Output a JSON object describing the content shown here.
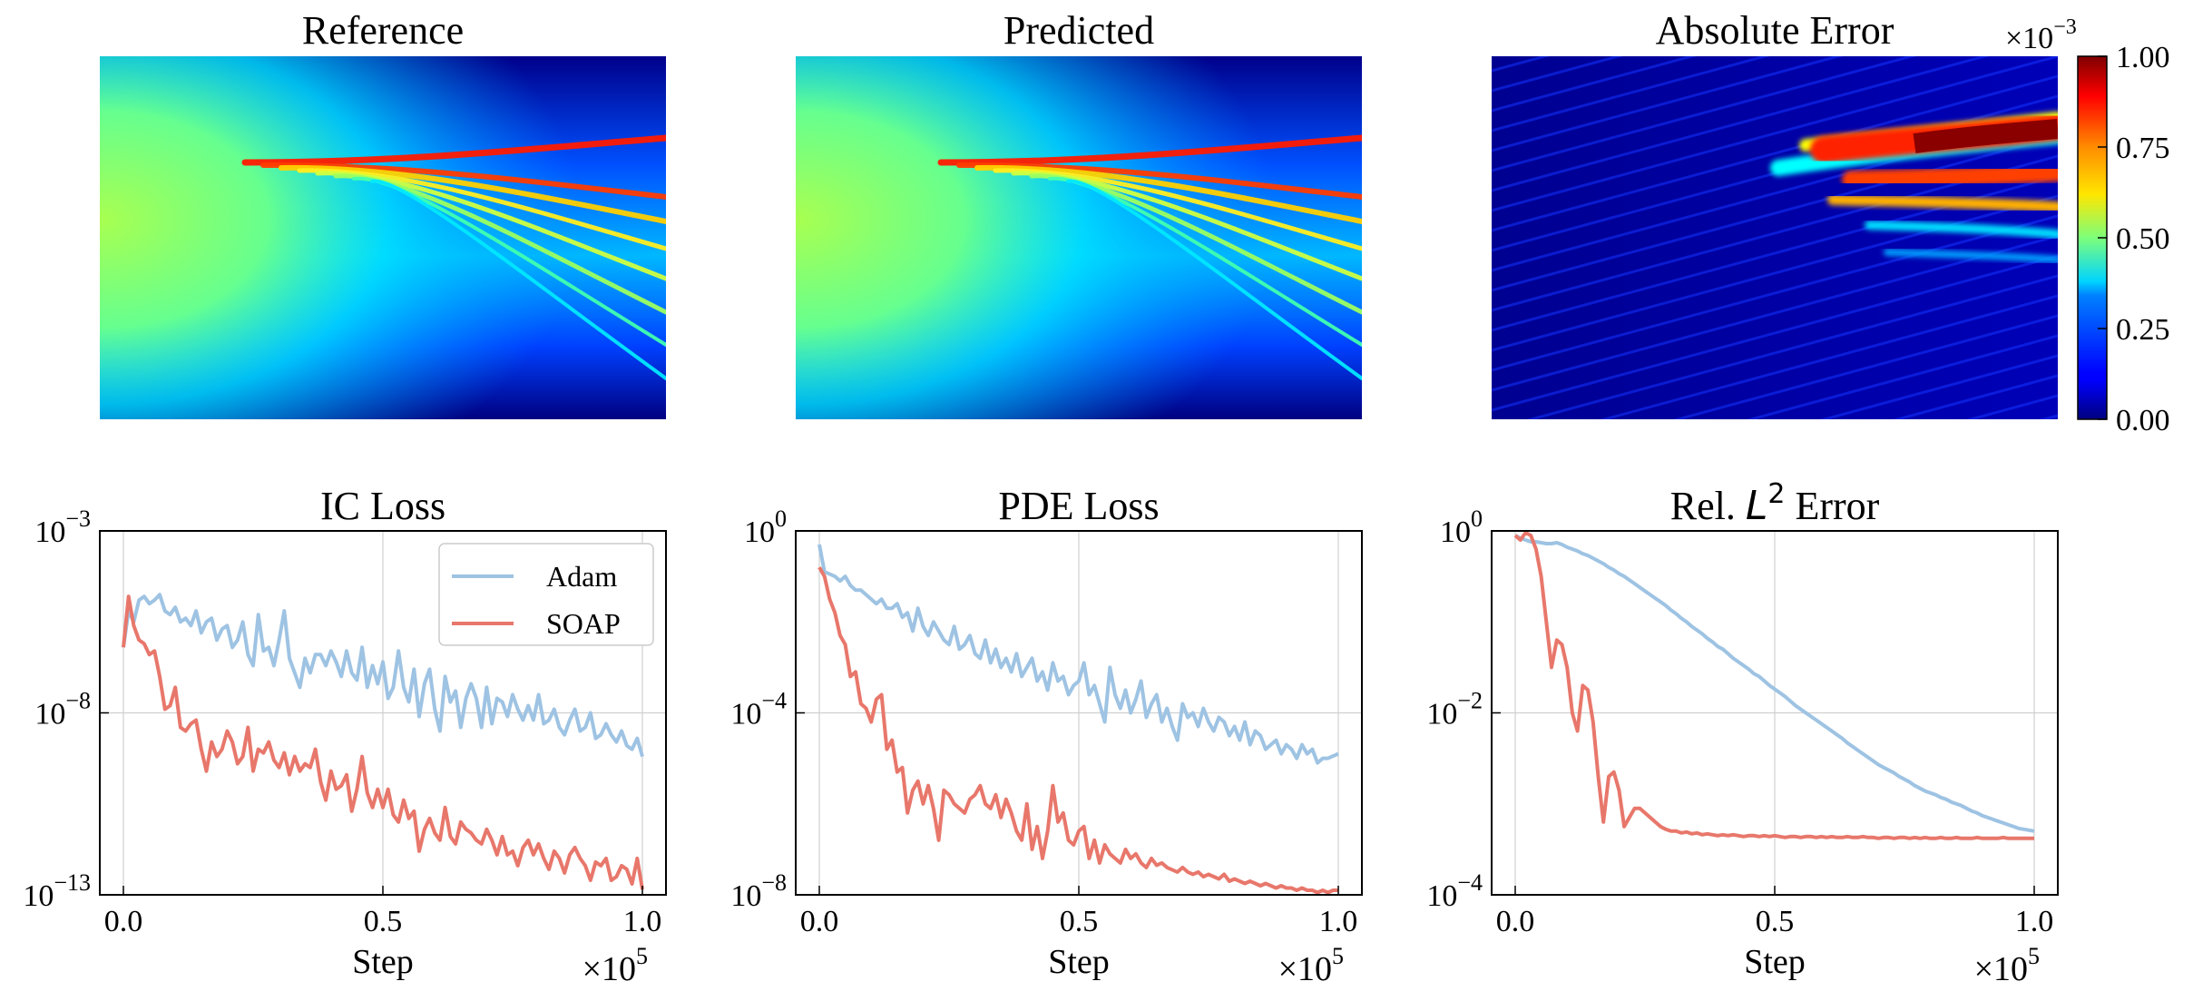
{
  "chart_data": [
    {
      "type": "heatmap",
      "title": "Reference",
      "field": "wave packet splitting into diverging beams (normalized amplitude)"
    },
    {
      "type": "heatmap",
      "title": "Predicted",
      "field": "wave packet splitting into diverging beams (normalized amplitude)"
    },
    {
      "type": "heatmap",
      "title": "Absolute Error",
      "colorbar": {
        "multiplier": "×10",
        "multiplier_exp": "−3",
        "range": [
          0,
          1
        ],
        "ticks": [
          "0.00",
          "0.25",
          "0.50",
          "0.75",
          "1.00"
        ]
      }
    },
    {
      "type": "line",
      "title": "IC Loss",
      "xlabel": "Step",
      "x_multiplier": "×10",
      "x_multiplier_exp": "5",
      "xlim": [
        0,
        1
      ],
      "yscale": "log",
      "ylim_exp": [
        -13,
        -3
      ],
      "xticks": [
        "0.0",
        "0.5",
        "1.0"
      ],
      "yticks": [
        {
          "exp": -3,
          "text": "−3"
        },
        {
          "exp": -8,
          "text": "−8"
        },
        {
          "exp": -13,
          "text": "−13"
        }
      ],
      "legend": {
        "position": "top-right",
        "entries": [
          "Adam",
          "SOAP"
        ]
      },
      "series": [
        {
          "name": "Adam",
          "color": "#9ec3e3",
          "log10_values": [
            -6.2,
            -5.2,
            -5.5,
            -4.9,
            -4.8,
            -5.0,
            -4.9,
            -4.75,
            -5.2,
            -5.3,
            -5.1,
            -5.5,
            -5.4,
            -5.6,
            -5.2,
            -5.8,
            -5.5,
            -5.4,
            -6.0,
            -5.7,
            -5.6,
            -6.2,
            -6.0,
            -5.5,
            -6.4,
            -6.7,
            -5.3,
            -6.3,
            -6.2,
            -6.7,
            -6.0,
            -5.2,
            -6.5,
            -6.9,
            -7.3,
            -6.5,
            -6.9,
            -6.4,
            -6.4,
            -6.7,
            -6.3,
            -6.6,
            -7.0,
            -6.3,
            -6.9,
            -7.1,
            -6.2,
            -7.3,
            -6.7,
            -7.2,
            -6.6,
            -7.6,
            -7.3,
            -6.3,
            -7.3,
            -7.7,
            -6.8,
            -8.1,
            -7.2,
            -6.8,
            -7.9,
            -8.5,
            -7.0,
            -7.7,
            -7.4,
            -8.4,
            -7.6,
            -7.2,
            -7.6,
            -8.4,
            -7.3,
            -8.3,
            -7.6,
            -7.7,
            -8.1,
            -7.5,
            -7.9,
            -8.2,
            -7.8,
            -8.2,
            -7.5,
            -8.3,
            -8.2,
            -7.9,
            -8.4,
            -8.6,
            -8.2,
            -7.9,
            -8.5,
            -8.4,
            -8.0,
            -8.7,
            -8.6,
            -8.3,
            -8.6,
            -8.8,
            -8.5,
            -8.9,
            -9.0,
            -8.7,
            -9.2
          ]
        },
        {
          "name": "SOAP",
          "color": "#e8776b",
          "log10_values": [
            -6.2,
            -4.8,
            -5.6,
            -6.0,
            -6.1,
            -6.4,
            -6.3,
            -7.0,
            -7.9,
            -7.8,
            -7.3,
            -8.4,
            -8.5,
            -8.3,
            -8.2,
            -9.0,
            -9.6,
            -8.8,
            -9.2,
            -9.0,
            -8.5,
            -8.8,
            -9.4,
            -9.2,
            -8.4,
            -9.6,
            -9.0,
            -9.1,
            -8.8,
            -9.3,
            -9.5,
            -9.1,
            -9.7,
            -9.2,
            -9.6,
            -9.4,
            -9.5,
            -9.0,
            -9.9,
            -10.4,
            -9.6,
            -10.1,
            -10.0,
            -9.7,
            -10.7,
            -10.1,
            -9.2,
            -10.2,
            -10.6,
            -10.1,
            -10.6,
            -10.1,
            -10.8,
            -11.0,
            -10.4,
            -10.9,
            -10.7,
            -11.8,
            -11.2,
            -10.9,
            -11.3,
            -11.5,
            -10.6,
            -11.4,
            -11.6,
            -11.0,
            -11.2,
            -11.3,
            -11.5,
            -11.6,
            -11.2,
            -11.5,
            -11.9,
            -11.4,
            -11.9,
            -11.8,
            -12.2,
            -11.7,
            -11.5,
            -11.9,
            -11.6,
            -12.0,
            -12.3,
            -11.8,
            -12.0,
            -12.4,
            -11.9,
            -11.7,
            -12.0,
            -12.2,
            -12.6,
            -12.1,
            -12.2,
            -12.0,
            -12.6,
            -12.5,
            -12.2,
            -12.3,
            -12.7,
            -12.0,
            -12.85
          ]
        }
      ]
    },
    {
      "type": "line",
      "title": "PDE Loss",
      "xlabel": "Step",
      "x_multiplier": "×10",
      "x_multiplier_exp": "5",
      "xlim": [
        0,
        1
      ],
      "yscale": "log",
      "ylim_exp": [
        -8,
        0
      ],
      "xticks": [
        "0.0",
        "0.5",
        "1.0"
      ],
      "yticks": [
        {
          "exp": 0,
          "text": "0"
        },
        {
          "exp": -4,
          "text": "−4"
        },
        {
          "exp": -8,
          "text": "−8"
        }
      ],
      "series": [
        {
          "name": "Adam",
          "color": "#9ec3e3",
          "log10_values": [
            -0.3,
            -0.9,
            -0.95,
            -1.0,
            -1.1,
            -1.0,
            -1.2,
            -1.3,
            -1.3,
            -1.4,
            -1.5,
            -1.6,
            -1.5,
            -1.7,
            -1.7,
            -1.6,
            -1.9,
            -1.8,
            -2.2,
            -1.7,
            -2.1,
            -2.3,
            -2.0,
            -2.2,
            -2.4,
            -2.5,
            -2.1,
            -2.6,
            -2.5,
            -2.3,
            -2.7,
            -2.8,
            -2.4,
            -2.9,
            -2.6,
            -3.0,
            -2.8,
            -3.1,
            -2.7,
            -3.2,
            -3.0,
            -2.8,
            -3.3,
            -3.1,
            -3.5,
            -2.9,
            -3.3,
            -3.2,
            -3.6,
            -3.4,
            -3.3,
            -2.9,
            -3.6,
            -3.4,
            -3.8,
            -4.2,
            -3.0,
            -3.6,
            -3.9,
            -3.5,
            -4.0,
            -3.7,
            -3.3,
            -4.1,
            -3.8,
            -3.6,
            -4.2,
            -3.9,
            -4.3,
            -4.6,
            -3.8,
            -4.1,
            -4.0,
            -4.3,
            -3.9,
            -4.2,
            -4.4,
            -4.1,
            -4.2,
            -4.5,
            -4.3,
            -4.6,
            -4.2,
            -4.7,
            -4.4,
            -4.5,
            -4.8,
            -4.7,
            -4.6,
            -4.9,
            -4.7,
            -4.8,
            -5.0,
            -4.7,
            -4.9,
            -4.8,
            -5.1,
            -5.0,
            -5.0,
            -4.95,
            -4.9
          ]
        },
        {
          "name": "SOAP",
          "color": "#e8776b",
          "log10_values": [
            -0.8,
            -1.0,
            -1.5,
            -1.8,
            -2.3,
            -2.5,
            -3.2,
            -3.1,
            -3.8,
            -3.9,
            -4.2,
            -3.7,
            -3.6,
            -4.8,
            -4.6,
            -5.3,
            -5.2,
            -6.2,
            -5.7,
            -5.5,
            -6.0,
            -5.6,
            -6.1,
            -6.8,
            -5.7,
            -5.8,
            -6.0,
            -6.1,
            -6.2,
            -5.9,
            -5.8,
            -5.6,
            -6.0,
            -6.1,
            -5.8,
            -6.3,
            -5.9,
            -6.2,
            -6.6,
            -6.8,
            -6.0,
            -7.0,
            -6.5,
            -7.2,
            -6.6,
            -5.6,
            -6.4,
            -6.2,
            -6.8,
            -6.9,
            -6.6,
            -6.5,
            -7.2,
            -6.8,
            -7.3,
            -6.9,
            -7.1,
            -7.2,
            -7.3,
            -7.0,
            -7.2,
            -7.1,
            -7.3,
            -7.4,
            -7.2,
            -7.35,
            -7.3,
            -7.4,
            -7.45,
            -7.5,
            -7.4,
            -7.5,
            -7.55,
            -7.5,
            -7.6,
            -7.55,
            -7.6,
            -7.65,
            -7.55,
            -7.7,
            -7.65,
            -7.7,
            -7.75,
            -7.7,
            -7.75,
            -7.8,
            -7.75,
            -7.8,
            -7.85,
            -7.8,
            -7.85,
            -7.85,
            -7.9,
            -7.85,
            -7.9,
            -7.9,
            -7.95,
            -7.9,
            -7.95,
            -7.9,
            -7.9
          ]
        }
      ]
    },
    {
      "type": "line",
      "title": "Rel. ",
      "title_math": "L",
      "title_math_exp": "2",
      "title_suffix": " Error",
      "xlabel": "Step",
      "x_multiplier": "×10",
      "x_multiplier_exp": "5",
      "xlim": [
        0,
        1
      ],
      "yscale": "log",
      "ylim_exp": [
        -4,
        0
      ],
      "xticks": [
        "0.0",
        "0.5",
        "1.0"
      ],
      "yticks": [
        {
          "exp": 0,
          "text": "0"
        },
        {
          "exp": -2,
          "text": "−2"
        },
        {
          "exp": -4,
          "text": "−4"
        }
      ],
      "series": [
        {
          "name": "Adam",
          "color": "#9ec3e3",
          "log10_values": [
            -0.05,
            -0.08,
            -0.1,
            -0.12,
            -0.12,
            -0.13,
            -0.14,
            -0.14,
            -0.13,
            -0.15,
            -0.18,
            -0.2,
            -0.22,
            -0.25,
            -0.27,
            -0.3,
            -0.33,
            -0.36,
            -0.4,
            -0.43,
            -0.47,
            -0.5,
            -0.54,
            -0.58,
            -0.62,
            -0.66,
            -0.7,
            -0.74,
            -0.78,
            -0.82,
            -0.87,
            -0.91,
            -0.96,
            -1.0,
            -1.05,
            -1.09,
            -1.13,
            -1.18,
            -1.22,
            -1.27,
            -1.3,
            -1.35,
            -1.4,
            -1.44,
            -1.48,
            -1.52,
            -1.57,
            -1.6,
            -1.65,
            -1.7,
            -1.74,
            -1.78,
            -1.82,
            -1.87,
            -1.92,
            -1.96,
            -2.0,
            -2.04,
            -2.08,
            -2.12,
            -2.16,
            -2.2,
            -2.24,
            -2.28,
            -2.33,
            -2.37,
            -2.41,
            -2.45,
            -2.49,
            -2.53,
            -2.57,
            -2.6,
            -2.63,
            -2.66,
            -2.7,
            -2.73,
            -2.76,
            -2.8,
            -2.83,
            -2.86,
            -2.88,
            -2.9,
            -2.93,
            -2.95,
            -2.98,
            -3.0,
            -3.02,
            -3.05,
            -3.08,
            -3.1,
            -3.13,
            -3.15,
            -3.17,
            -3.19,
            -3.21,
            -3.23,
            -3.25,
            -3.27,
            -3.28,
            -3.29,
            -3.3
          ]
        },
        {
          "name": "SOAP",
          "color": "#e8776b",
          "log10_values": [
            -0.05,
            -0.1,
            -0.02,
            -0.05,
            -0.2,
            -0.5,
            -1.0,
            -1.5,
            -1.2,
            -1.25,
            -1.5,
            -2.0,
            -2.2,
            -1.7,
            -1.75,
            -2.1,
            -2.7,
            -3.2,
            -2.7,
            -2.65,
            -2.85,
            -3.25,
            -3.15,
            -3.05,
            -3.05,
            -3.1,
            -3.15,
            -3.2,
            -3.25,
            -3.28,
            -3.3,
            -3.3,
            -3.32,
            -3.31,
            -3.33,
            -3.32,
            -3.34,
            -3.33,
            -3.34,
            -3.35,
            -3.34,
            -3.35,
            -3.34,
            -3.35,
            -3.36,
            -3.35,
            -3.35,
            -3.36,
            -3.35,
            -3.36,
            -3.35,
            -3.36,
            -3.37,
            -3.36,
            -3.36,
            -3.37,
            -3.36,
            -3.36,
            -3.37,
            -3.36,
            -3.37,
            -3.36,
            -3.37,
            -3.37,
            -3.36,
            -3.37,
            -3.37,
            -3.36,
            -3.37,
            -3.37,
            -3.38,
            -3.37,
            -3.37,
            -3.38,
            -3.37,
            -3.37,
            -3.38,
            -3.37,
            -3.38,
            -3.37,
            -3.38,
            -3.38,
            -3.37,
            -3.38,
            -3.38,
            -3.37,
            -3.38,
            -3.38,
            -3.38,
            -3.37,
            -3.38,
            -3.38,
            -3.38,
            -3.38,
            -3.37,
            -3.38,
            -3.38,
            -3.38,
            -3.38,
            -3.38,
            -3.38
          ]
        }
      ]
    }
  ]
}
